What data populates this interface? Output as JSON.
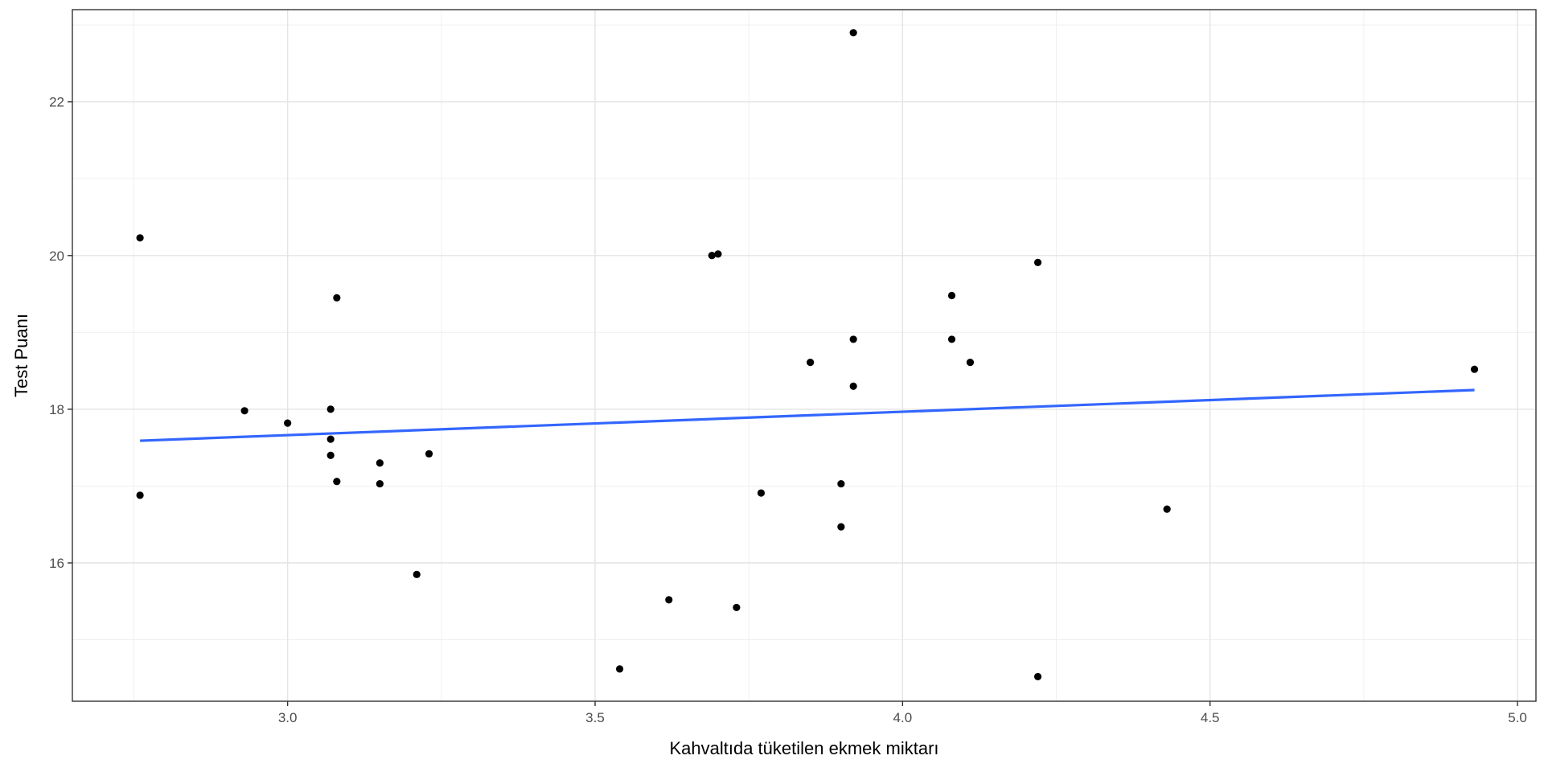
{
  "chart_data": {
    "type": "scatter",
    "xlabel": "Kahvaltıda tüketilen ekmek miktarı",
    "ylabel": "Test Puanı",
    "xlim": [
      2.65,
      5.03
    ],
    "ylim": [
      14.2,
      23.2
    ],
    "x_ticks": [
      "3.0",
      "3.5",
      "4.0",
      "4.5",
      "5.0"
    ],
    "y_ticks": [
      "16",
      "18",
      "20",
      "22"
    ],
    "grid": true,
    "points": [
      {
        "x": 2.76,
        "y": 20.23
      },
      {
        "x": 2.76,
        "y": 16.88
      },
      {
        "x": 2.93,
        "y": 17.98
      },
      {
        "x": 3.0,
        "y": 17.82
      },
      {
        "x": 3.07,
        "y": 18.0
      },
      {
        "x": 3.07,
        "y": 17.61
      },
      {
        "x": 3.07,
        "y": 17.4
      },
      {
        "x": 3.08,
        "y": 19.45
      },
      {
        "x": 3.08,
        "y": 17.06
      },
      {
        "x": 3.15,
        "y": 17.3
      },
      {
        "x": 3.15,
        "y": 17.03
      },
      {
        "x": 3.21,
        "y": 15.85
      },
      {
        "x": 3.23,
        "y": 17.42
      },
      {
        "x": 3.54,
        "y": 14.62
      },
      {
        "x": 3.62,
        "y": 15.52
      },
      {
        "x": 3.69,
        "y": 20.0
      },
      {
        "x": 3.7,
        "y": 20.02
      },
      {
        "x": 3.73,
        "y": 15.42
      },
      {
        "x": 3.77,
        "y": 16.91
      },
      {
        "x": 3.85,
        "y": 18.61
      },
      {
        "x": 3.9,
        "y": 17.03
      },
      {
        "x": 3.9,
        "y": 16.47
      },
      {
        "x": 3.92,
        "y": 22.9
      },
      {
        "x": 3.92,
        "y": 18.91
      },
      {
        "x": 3.92,
        "y": 18.3
      },
      {
        "x": 4.08,
        "y": 19.48
      },
      {
        "x": 4.08,
        "y": 18.91
      },
      {
        "x": 4.11,
        "y": 18.61
      },
      {
        "x": 4.22,
        "y": 19.91
      },
      {
        "x": 4.22,
        "y": 14.52
      },
      {
        "x": 4.43,
        "y": 16.7
      },
      {
        "x": 4.93,
        "y": 18.52
      }
    ],
    "fit_line": {
      "x": [
        2.76,
        4.93
      ],
      "y": [
        17.59,
        18.25
      ],
      "color": "#3366ff"
    },
    "point_color": "#000000"
  }
}
